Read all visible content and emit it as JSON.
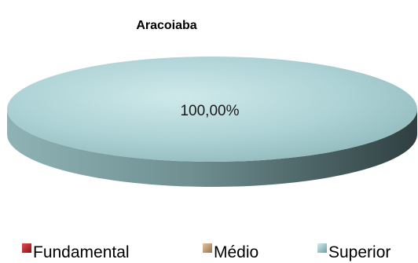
{
  "chart_data": {
    "type": "pie",
    "title": "Aracoiaba",
    "categories": [
      "Fundamental",
      "Médio",
      "Superior"
    ],
    "values": [
      0,
      0,
      100
    ],
    "data_labels": [
      "",
      "",
      "100,00%"
    ],
    "legend_position": "bottom",
    "style": "3d",
    "colors": {
      "Fundamental": "#c0282d",
      "Médio": "#c9a27a",
      "Superior": "#a9cfd3"
    }
  }
}
